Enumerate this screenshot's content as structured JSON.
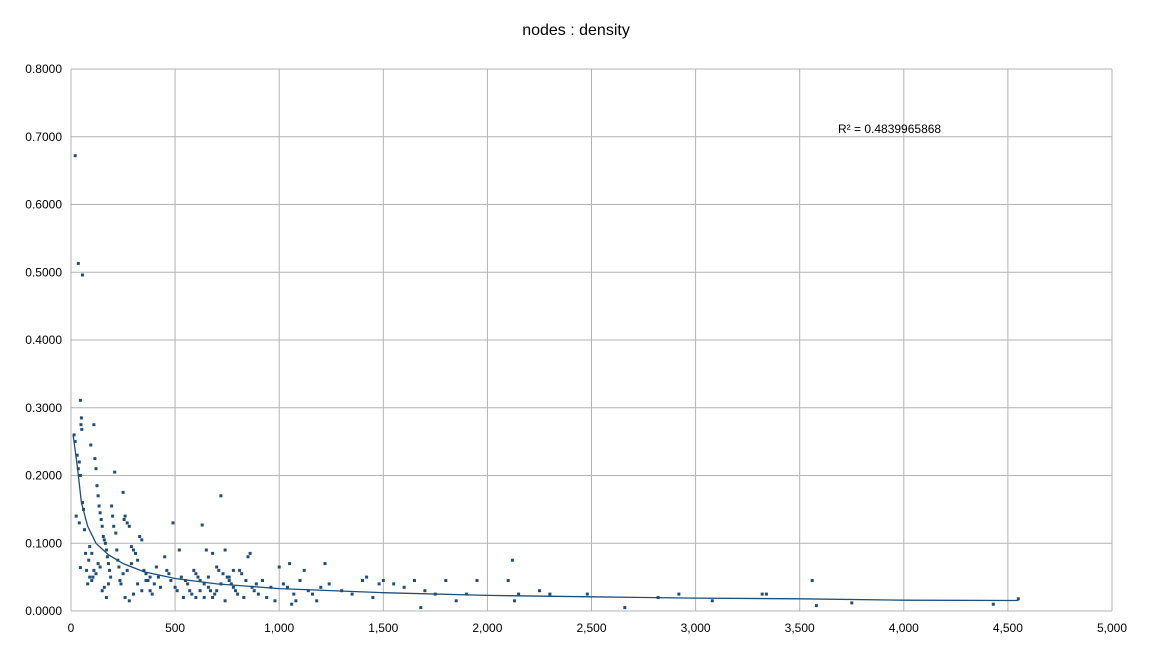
{
  "chart_data": {
    "type": "scatter",
    "title": "nodes : density",
    "xlabel": "",
    "ylabel": "",
    "xlim": [
      0,
      5000
    ],
    "ylim": [
      0,
      0.8
    ],
    "x_ticks": [
      "0",
      "500",
      "1,000",
      "1,500",
      "2,000",
      "2,500",
      "3,000",
      "3,500",
      "4,000",
      "4,500",
      "5,000"
    ],
    "y_ticks": [
      "0.0000",
      "0.1000",
      "0.2000",
      "0.3000",
      "0.4000",
      "0.5000",
      "0.6000",
      "0.7000",
      "0.8000"
    ],
    "grid": true,
    "legend": "none",
    "marker_color": "#1f4e79",
    "trendline": {
      "type": "power",
      "color": "#1f4e79",
      "r_squared_label": "R² = 0.4839965868",
      "points": [
        [
          10,
          0.26
        ],
        [
          30,
          0.215
        ],
        [
          50,
          0.16
        ],
        [
          80,
          0.125
        ],
        [
          120,
          0.1
        ],
        [
          180,
          0.083
        ],
        [
          250,
          0.07
        ],
        [
          350,
          0.058
        ],
        [
          500,
          0.048
        ],
        [
          700,
          0.04
        ],
        [
          1000,
          0.033
        ],
        [
          1500,
          0.027
        ],
        [
          2000,
          0.023
        ],
        [
          2500,
          0.021
        ],
        [
          3000,
          0.019
        ],
        [
          3500,
          0.018
        ],
        [
          4000,
          0.016
        ],
        [
          4550,
          0.0155
        ]
      ]
    },
    "points": [
      [
        20,
        0.672
      ],
      [
        35,
        0.513
      ],
      [
        55,
        0.496
      ],
      [
        45,
        0.311
      ],
      [
        50,
        0.285
      ],
      [
        48,
        0.275
      ],
      [
        52,
        0.268
      ],
      [
        15,
        0.26
      ],
      [
        20,
        0.25
      ],
      [
        30,
        0.23
      ],
      [
        40,
        0.22
      ],
      [
        35,
        0.21
      ],
      [
        45,
        0.2
      ],
      [
        55,
        0.16
      ],
      [
        60,
        0.15
      ],
      [
        25,
        0.14
      ],
      [
        40,
        0.13
      ],
      [
        65,
        0.12
      ],
      [
        45,
        0.064
      ],
      [
        70,
        0.085
      ],
      [
        75,
        0.06
      ],
      [
        80,
        0.04
      ],
      [
        85,
        0.075
      ],
      [
        90,
        0.095
      ],
      [
        95,
        0.245
      ],
      [
        100,
        0.085
      ],
      [
        105,
        0.05
      ],
      [
        110,
        0.275
      ],
      [
        115,
        0.225
      ],
      [
        120,
        0.21
      ],
      [
        125,
        0.185
      ],
      [
        130,
        0.17
      ],
      [
        135,
        0.155
      ],
      [
        140,
        0.145
      ],
      [
        145,
        0.135
      ],
      [
        150,
        0.125
      ],
      [
        155,
        0.11
      ],
      [
        160,
        0.105
      ],
      [
        165,
        0.1
      ],
      [
        170,
        0.09
      ],
      [
        175,
        0.08
      ],
      [
        180,
        0.07
      ],
      [
        185,
        0.06
      ],
      [
        190,
        0.05
      ],
      [
        195,
        0.155
      ],
      [
        200,
        0.14
      ],
      [
        205,
        0.125
      ],
      [
        210,
        0.205
      ],
      [
        215,
        0.115
      ],
      [
        220,
        0.09
      ],
      [
        225,
        0.075
      ],
      [
        230,
        0.065
      ],
      [
        235,
        0.045
      ],
      [
        240,
        0.04
      ],
      [
        100,
        0.045
      ],
      [
        110,
        0.06
      ],
      [
        130,
        0.07
      ],
      [
        150,
        0.03
      ],
      [
        160,
        0.035
      ],
      [
        170,
        0.02
      ],
      [
        90,
        0.05
      ],
      [
        120,
        0.055
      ],
      [
        140,
        0.065
      ],
      [
        180,
        0.04
      ],
      [
        250,
        0.175
      ],
      [
        255,
        0.135
      ],
      [
        260,
        0.14
      ],
      [
        270,
        0.13
      ],
      [
        280,
        0.125
      ],
      [
        290,
        0.095
      ],
      [
        300,
        0.09
      ],
      [
        310,
        0.085
      ],
      [
        320,
        0.075
      ],
      [
        330,
        0.11
      ],
      [
        340,
        0.105
      ],
      [
        350,
        0.06
      ],
      [
        360,
        0.055
      ],
      [
        370,
        0.045
      ],
      [
        380,
        0.03
      ],
      [
        390,
        0.025
      ],
      [
        400,
        0.04
      ],
      [
        410,
        0.065
      ],
      [
        420,
        0.05
      ],
      [
        430,
        0.035
      ],
      [
        260,
        0.02
      ],
      [
        280,
        0.015
      ],
      [
        300,
        0.025
      ],
      [
        320,
        0.04
      ],
      [
        340,
        0.03
      ],
      [
        360,
        0.045
      ],
      [
        380,
        0.05
      ],
      [
        250,
        0.055
      ],
      [
        270,
        0.06
      ],
      [
        290,
        0.07
      ],
      [
        450,
        0.08
      ],
      [
        460,
        0.06
      ],
      [
        470,
        0.055
      ],
      [
        480,
        0.045
      ],
      [
        490,
        0.13
      ],
      [
        500,
        0.035
      ],
      [
        510,
        0.03
      ],
      [
        520,
        0.09
      ],
      [
        530,
        0.05
      ],
      [
        540,
        0.02
      ],
      [
        550,
        0.045
      ],
      [
        560,
        0.04
      ],
      [
        570,
        0.03
      ],
      [
        580,
        0.025
      ],
      [
        590,
        0.06
      ],
      [
        600,
        0.055
      ],
      [
        610,
        0.05
      ],
      [
        620,
        0.045
      ],
      [
        630,
        0.127
      ],
      [
        640,
        0.04
      ],
      [
        650,
        0.09
      ],
      [
        660,
        0.035
      ],
      [
        670,
        0.03
      ],
      [
        680,
        0.085
      ],
      [
        690,
        0.025
      ],
      [
        700,
        0.065
      ],
      [
        710,
        0.06
      ],
      [
        720,
        0.17
      ],
      [
        730,
        0.055
      ],
      [
        740,
        0.09
      ],
      [
        750,
        0.05
      ],
      [
        760,
        0.045
      ],
      [
        770,
        0.04
      ],
      [
        780,
        0.035
      ],
      [
        790,
        0.03
      ],
      [
        800,
        0.025
      ],
      [
        810,
        0.06
      ],
      [
        820,
        0.055
      ],
      [
        830,
        0.02
      ],
      [
        840,
        0.045
      ],
      [
        850,
        0.08
      ],
      [
        860,
        0.085
      ],
      [
        870,
        0.035
      ],
      [
        880,
        0.03
      ],
      [
        890,
        0.04
      ],
      [
        900,
        0.025
      ],
      [
        920,
        0.045
      ],
      [
        940,
        0.02
      ],
      [
        960,
        0.035
      ],
      [
        980,
        0.015
      ],
      [
        600,
        0.02
      ],
      [
        620,
        0.03
      ],
      [
        640,
        0.02
      ],
      [
        660,
        0.05
      ],
      [
        680,
        0.02
      ],
      [
        700,
        0.03
      ],
      [
        720,
        0.04
      ],
      [
        740,
        0.015
      ],
      [
        760,
        0.05
      ],
      [
        780,
        0.06
      ],
      [
        1000,
        0.065
      ],
      [
        1020,
        0.04
      ],
      [
        1040,
        0.035
      ],
      [
        1050,
        0.07
      ],
      [
        1060,
        0.01
      ],
      [
        1070,
        0.025
      ],
      [
        1080,
        0.015
      ],
      [
        1100,
        0.045
      ],
      [
        1120,
        0.06
      ],
      [
        1140,
        0.03
      ],
      [
        1160,
        0.025
      ],
      [
        1180,
        0.015
      ],
      [
        1200,
        0.035
      ],
      [
        1220,
        0.07
      ],
      [
        1240,
        0.04
      ],
      [
        1300,
        0.03
      ],
      [
        1350,
        0.025
      ],
      [
        1400,
        0.045
      ],
      [
        1420,
        0.05
      ],
      [
        1450,
        0.02
      ],
      [
        1480,
        0.04
      ],
      [
        1500,
        0.045
      ],
      [
        1550,
        0.04
      ],
      [
        1600,
        0.035
      ],
      [
        1650,
        0.045
      ],
      [
        1680,
        0.005
      ],
      [
        1700,
        0.03
      ],
      [
        1750,
        0.025
      ],
      [
        1800,
        0.045
      ],
      [
        1850,
        0.015
      ],
      [
        1900,
        0.025
      ],
      [
        1950,
        0.045
      ],
      [
        2100,
        0.045
      ],
      [
        2120,
        0.075
      ],
      [
        2130,
        0.015
      ],
      [
        2150,
        0.025
      ],
      [
        2250,
        0.03
      ],
      [
        2300,
        0.025
      ],
      [
        2480,
        0.025
      ],
      [
        2660,
        0.005
      ],
      [
        2820,
        0.02
      ],
      [
        2920,
        0.025
      ],
      [
        3080,
        0.015
      ],
      [
        3320,
        0.025
      ],
      [
        3340,
        0.025
      ],
      [
        3560,
        0.045
      ],
      [
        3580,
        0.008
      ],
      [
        3750,
        0.012
      ],
      [
        4430,
        0.01
      ],
      [
        4550,
        0.018
      ]
    ]
  }
}
